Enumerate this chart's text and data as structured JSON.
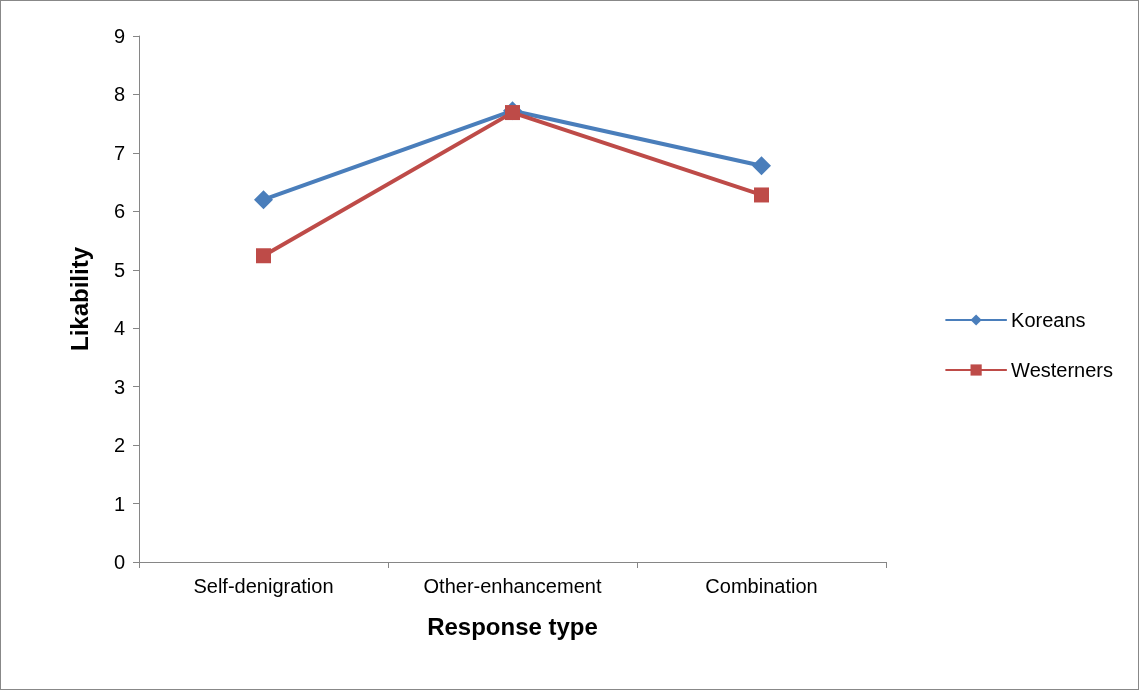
{
  "chart_data": {
    "type": "line",
    "xlabel": "Response type",
    "ylabel": "Likability",
    "categories": [
      "Self-denigration",
      "Other-enhancement",
      "Combination"
    ],
    "series": [
      {
        "name": "Koreans",
        "color": "#4a7ebb",
        "marker": "diamond",
        "values": [
          6.2,
          7.72,
          6.78
        ]
      },
      {
        "name": "Westerners",
        "color": "#be4b48",
        "marker": "square",
        "values": [
          5.24,
          7.69,
          6.28
        ]
      }
    ],
    "ylim": [
      0,
      9
    ],
    "yticks": [
      0,
      1,
      2,
      3,
      4,
      5,
      6,
      7,
      8,
      9
    ],
    "grid": false,
    "legend": "right",
    "line_style": "solid"
  }
}
